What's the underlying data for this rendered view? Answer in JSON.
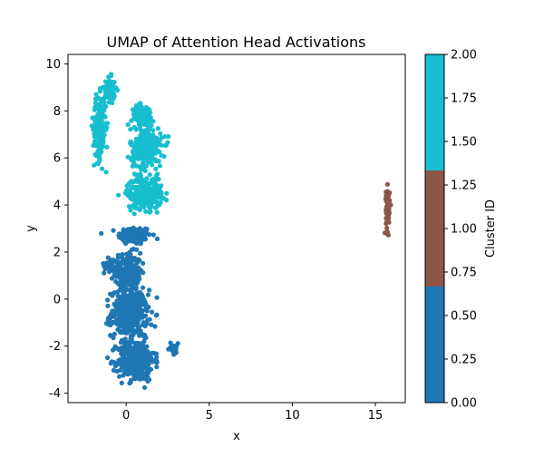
{
  "chart_data": {
    "type": "scatter",
    "title": "UMAP of Attention Head Activations",
    "xlabel": "x",
    "ylabel": "y",
    "xlim": [
      -3.5,
      16.8
    ],
    "ylim": [
      -4.4,
      10.4
    ],
    "x_ticks": [
      0,
      5,
      10,
      15
    ],
    "y_ticks": [
      -4,
      -2,
      0,
      2,
      4,
      6,
      8,
      10
    ],
    "grid": false,
    "legend": "none",
    "colorbar": {
      "label": "Cluster ID",
      "range": [
        0,
        2
      ],
      "ticks": [
        "0.00",
        "0.25",
        "0.50",
        "0.75",
        "1.00",
        "1.25",
        "1.50",
        "1.75",
        "2.00"
      ],
      "bands": [
        {
          "from": 0.0,
          "to": 0.6667,
          "color": "#1f77b4"
        },
        {
          "from": 0.6667,
          "to": 1.3333,
          "color": "#8c564b"
        },
        {
          "from": 1.3333,
          "to": 2.0,
          "color": "#17becf"
        }
      ]
    },
    "clusters": [
      {
        "cluster_id": 0,
        "color": "#1f77b4",
        "approx_points": 1200,
        "blobs": [
          {
            "cx": 0.5,
            "cy": 2.7,
            "sx": 0.9,
            "sy": 0.35,
            "weight": 0.12
          },
          {
            "cx": 0.1,
            "cy": 1.2,
            "sx": 0.7,
            "sy": 0.7,
            "weight": 0.18
          },
          {
            "cx": 0.2,
            "cy": -0.6,
            "sx": 1.0,
            "sy": 0.9,
            "weight": 0.35
          },
          {
            "cx": 0.6,
            "cy": -2.6,
            "sx": 1.0,
            "sy": 0.8,
            "weight": 0.3
          },
          {
            "cx": -1.0,
            "cy": 1.5,
            "sx": 0.3,
            "sy": 0.3,
            "weight": 0.03
          },
          {
            "cx": 2.8,
            "cy": -2.1,
            "sx": 0.4,
            "sy": 0.2,
            "weight": 0.02
          }
        ]
      },
      {
        "cluster_id": 1,
        "color": "#8c564b",
        "approx_points": 80,
        "blobs": [
          {
            "cx": 15.75,
            "cy": 3.8,
            "sx": 0.1,
            "sy": 0.85,
            "weight": 1.0
          }
        ]
      },
      {
        "cluster_id": 2,
        "color": "#17becf",
        "approx_points": 900,
        "blobs": [
          {
            "cx": -1.6,
            "cy": 7.3,
            "sx": 0.35,
            "sy": 1.2,
            "weight": 0.22
          },
          {
            "cx": -1.0,
            "cy": 8.9,
            "sx": 0.3,
            "sy": 0.45,
            "weight": 0.08
          },
          {
            "cx": 1.1,
            "cy": 4.5,
            "sx": 0.95,
            "sy": 0.6,
            "weight": 0.3
          },
          {
            "cx": 1.2,
            "cy": 6.4,
            "sx": 0.85,
            "sy": 0.8,
            "weight": 0.3
          },
          {
            "cx": 1.0,
            "cy": 7.8,
            "sx": 0.6,
            "sy": 0.4,
            "weight": 0.1
          }
        ]
      }
    ]
  }
}
